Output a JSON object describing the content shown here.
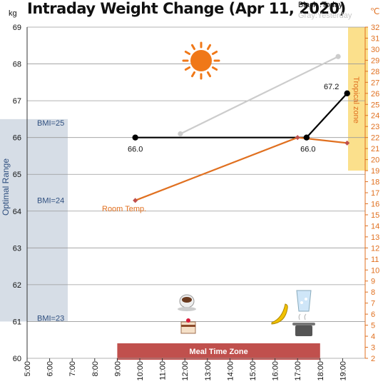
{
  "chart_data": {
    "type": "line",
    "title": "Intraday Weight Change (Apr 11, 2020)",
    "legend": {
      "today": "Black :Today",
      "yesterday": "Gray:Yesterday",
      "placement": "top-right"
    },
    "left_unit": "kg",
    "right_unit": "℃",
    "ylim": [
      60,
      69
    ],
    "y_ticks": [
      "60",
      "61",
      "62",
      "63",
      "64",
      "65",
      "66",
      "67",
      "68",
      "69"
    ],
    "ylim_right": [
      2,
      32
    ],
    "y2_ticks": [
      "2",
      "3",
      "4",
      "5",
      "6",
      "7",
      "8",
      "9",
      "10",
      "11",
      "12",
      "13",
      "14",
      "15",
      "16",
      "17",
      "18",
      "19",
      "20",
      "21",
      "22",
      "23",
      "24",
      "25",
      "26",
      "27",
      "28",
      "29",
      "30",
      "31",
      "32"
    ],
    "xlim": [
      5,
      20
    ],
    "x_ticks": [
      "5:00",
      "6:00",
      "7:00",
      "8:00",
      "9:00",
      "10:00",
      "11:00",
      "12:00",
      "13:00",
      "14:00",
      "15:00",
      "16:00",
      "17:00",
      "18:00",
      "19:00"
    ],
    "grid": true,
    "series": [
      {
        "name": "Today",
        "axis": "left",
        "color": "#000000",
        "points": [
          {
            "x": 9.8,
            "y": 66.0
          },
          {
            "x": 17.4,
            "y": 66.0
          },
          {
            "x": 19.2,
            "y": 67.2
          }
        ],
        "labels": [
          "66.0",
          "66.0",
          "67.2"
        ]
      },
      {
        "name": "Yesterday",
        "axis": "left",
        "color": "#cccccc",
        "points": [
          {
            "x": 11.8,
            "y": 66.1
          },
          {
            "x": 18.8,
            "y": 68.2
          }
        ]
      },
      {
        "name": "Room Temp.",
        "axis": "right",
        "color": "#e07020",
        "points": [
          {
            "x": 9.8,
            "y": 16.3
          },
          {
            "x": 17.0,
            "y": 22.0
          },
          {
            "x": 19.2,
            "y": 21.5
          }
        ]
      }
    ],
    "optimal_range": {
      "label": "Optimal Range",
      "bmi_labels": [
        "BMI=25",
        "BMI=24",
        "BMI=23"
      ],
      "bmi_y": [
        66.4,
        64.3,
        61.1
      ]
    },
    "tropical_zone": {
      "label": "Tropical zone",
      "from": 19,
      "to": 32
    },
    "meal_time_zone": {
      "label": "Meal Time Zone",
      "from": 9.0,
      "to": 18.0
    },
    "annotations": {
      "room_temp_label": "Room Temp."
    },
    "colors": {
      "today": "#000000",
      "yesterday": "#cccccc",
      "temp": "#e07020",
      "left_axis": "#333333",
      "right_axis": "#e07020",
      "optimal_band": "#d6dde6",
      "bmi_text": "#2f4f7f",
      "tropical_band": "#fbe08c",
      "meal_band": "#c0504d",
      "sun": "#f07818"
    },
    "icons": [
      "sun-icon",
      "coffee-icon",
      "cake-icon",
      "banana-icon",
      "water-glass-icon",
      "cooking-pot-icon"
    ]
  }
}
